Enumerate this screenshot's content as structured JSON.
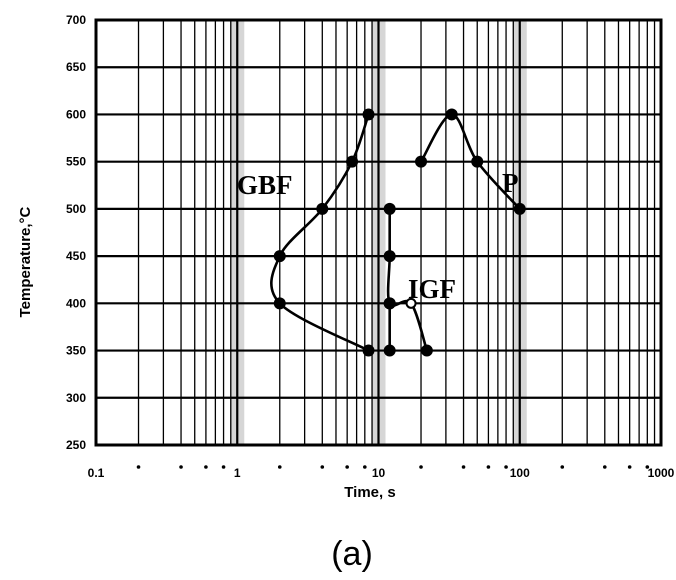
{
  "chart_data": {
    "type": "line",
    "title": "",
    "xlabel": "Time, s",
    "ylabel": "Temperature,°C",
    "x_scale": "log",
    "xlim": [
      0.1,
      1000
    ],
    "ylim": [
      250,
      700
    ],
    "grid": true,
    "x_tick_labels": [
      "0.1",
      "1",
      "10",
      "100",
      "1000"
    ],
    "y_ticks": [
      250,
      300,
      350,
      400,
      450,
      500,
      550,
      600,
      650,
      700
    ],
    "y_tick_labels": [
      "250",
      "300",
      "350",
      "400",
      "450",
      "500",
      "550",
      "600",
      "650",
      "700"
    ],
    "series": [
      {
        "name": "GBF",
        "points": [
          [
            8.5,
            600
          ],
          [
            6.5,
            550
          ],
          [
            4,
            500
          ],
          [
            2,
            450
          ],
          [
            2,
            400
          ],
          [
            8.5,
            350
          ]
        ]
      },
      {
        "name": "IGF",
        "points": [
          [
            12,
            500
          ],
          [
            12,
            450
          ],
          [
            12,
            400
          ],
          [
            17,
            400
          ],
          [
            22,
            350
          ]
        ]
      },
      {
        "name": "",
        "points": [
          [
            12,
            350
          ],
          [
            12,
            400
          ]
        ]
      },
      {
        "name": "P",
        "points": [
          [
            20,
            550
          ],
          [
            33,
            600
          ],
          [
            50,
            550
          ],
          [
            100,
            500
          ]
        ]
      }
    ],
    "annotations": [
      "GBF",
      "IGF",
      "P"
    ],
    "caption": "(a)"
  }
}
